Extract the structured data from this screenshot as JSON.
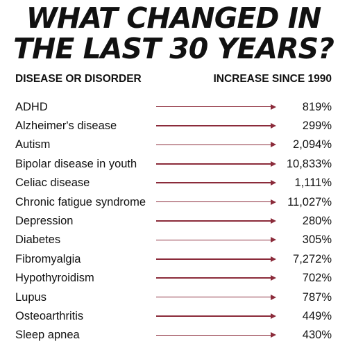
{
  "title": {
    "line1": "WHAT CHANGED IN",
    "line2": "THE LAST 30 YEARS?"
  },
  "headers": {
    "left": "DISEASE OR DISORDER",
    "right": "INCREASE SINCE 1990"
  },
  "colors": {
    "arrow": "#8b2b3a",
    "text": "#111111",
    "background": "#ffffff"
  },
  "rows": [
    {
      "name": "ADHD",
      "increase": "819%"
    },
    {
      "name": "Alzheimer's disease",
      "increase": "299%"
    },
    {
      "name": "Autism",
      "increase": "2,094%"
    },
    {
      "name": "Bipolar disease in youth",
      "increase": "10,833%"
    },
    {
      "name": "Celiac disease",
      "increase": "1,111%"
    },
    {
      "name": "Chronic fatigue syndrome",
      "increase": "11,027%"
    },
    {
      "name": "Depression",
      "increase": "280%"
    },
    {
      "name": "Diabetes",
      "increase": "305%"
    },
    {
      "name": "Fibromyalgia",
      "increase": "7,272%"
    },
    {
      "name": "Hypothyroidism",
      "increase": "702%"
    },
    {
      "name": "Lupus",
      "increase": "787%"
    },
    {
      "name": "Osteoarthritis",
      "increase": "449%"
    },
    {
      "name": "Sleep apnea",
      "increase": "430%"
    }
  ]
}
